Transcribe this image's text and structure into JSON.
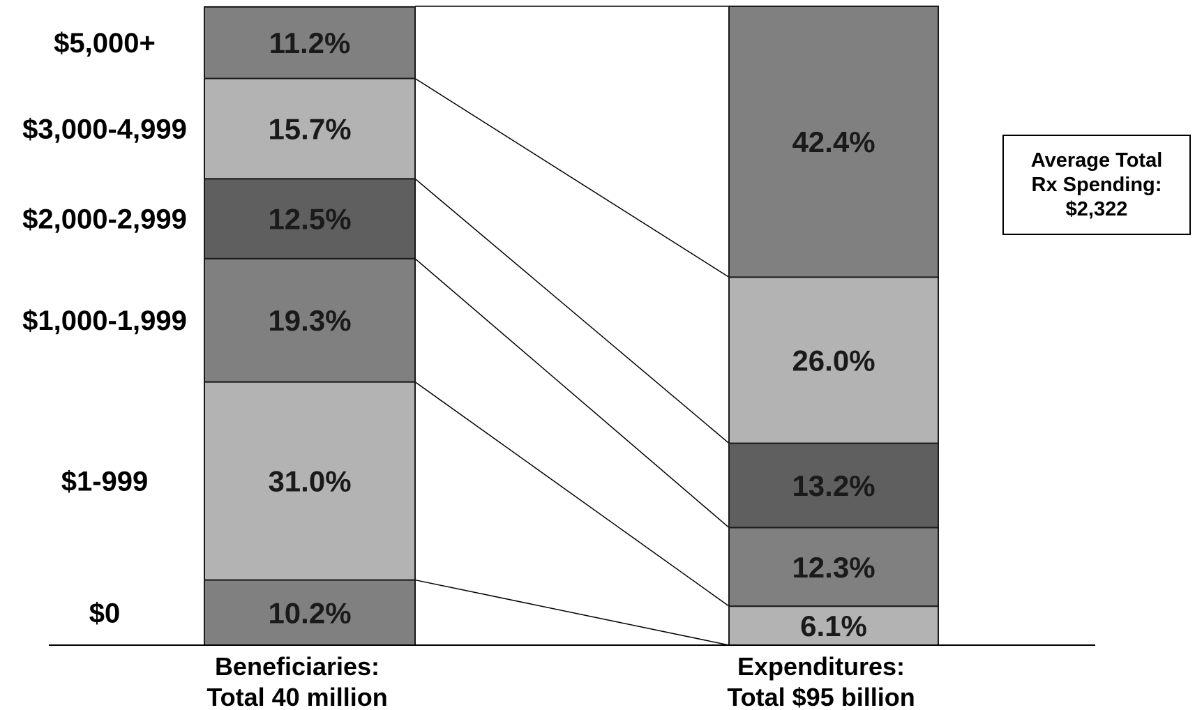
{
  "chart_data": {
    "type": "bar",
    "stacked": true,
    "normalized_to": 100,
    "categories": [
      "Beneficiaries:\nTotal 40 million",
      "Expenditures:\nTotal $95 billion"
    ],
    "category_lines": [
      [
        "Beneficiaries:",
        "Total 40 million"
      ],
      [
        "Expenditures:",
        "Total $95 billion"
      ]
    ],
    "series": [
      {
        "name": "$0",
        "values": [
          10.2,
          0.0
        ],
        "labels": [
          "10.2%",
          ""
        ],
        "color": "#808080"
      },
      {
        "name": "$1-999",
        "values": [
          31.0,
          6.1
        ],
        "labels": [
          "31.0%",
          "6.1%"
        ],
        "color": "#b3b3b3"
      },
      {
        "name": "$1,000-1,999",
        "values": [
          19.3,
          12.3
        ],
        "labels": [
          "19.3%",
          "12.3%"
        ],
        "color": "#808080"
      },
      {
        "name": "$2,000-2,999",
        "values": [
          12.5,
          13.2
        ],
        "labels": [
          "12.5%",
          "13.2%"
        ],
        "color": "#5f5f5f"
      },
      {
        "name": "$3,000-4,999",
        "values": [
          15.7,
          26.0
        ],
        "labels": [
          "15.7%",
          "26.0%"
        ],
        "color": "#b3b3b3"
      },
      {
        "name": "$5,000+",
        "values": [
          11.2,
          42.4
        ],
        "labels": [
          "11.2%",
          "42.4%"
        ],
        "color": "#808080"
      }
    ],
    "connector_lines": true,
    "legend": "left-side row labels"
  },
  "annotation": {
    "lines": [
      "Average Total",
      "Rx Spending:",
      "$2,322"
    ]
  }
}
